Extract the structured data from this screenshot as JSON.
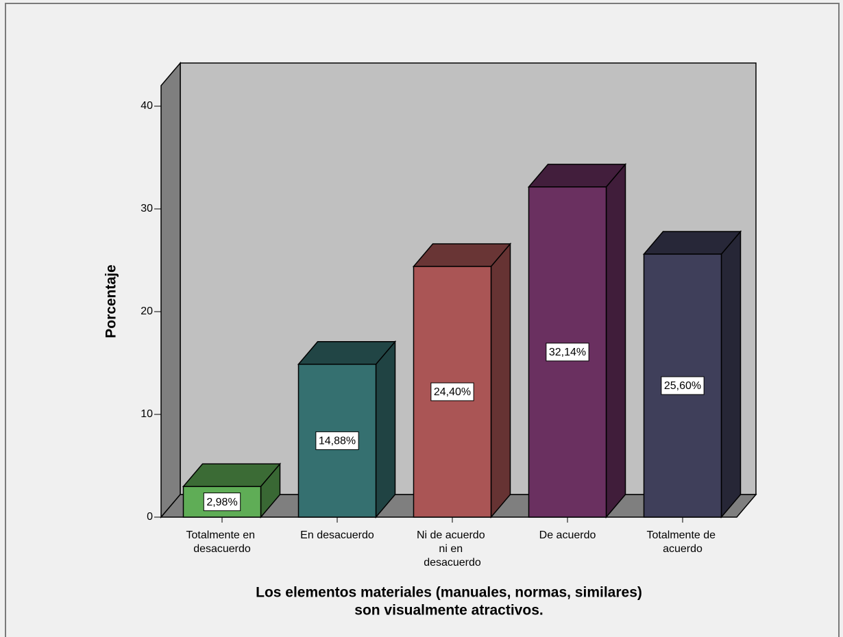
{
  "chart_data": {
    "type": "bar3d",
    "ylabel": "Porcentaje",
    "xlabel": [
      "Los elementos materiales (manuales, normas, similares)",
      "son visualmente atractivos."
    ],
    "categories": [
      "Totalmente en desacuerdo",
      "En desacuerdo",
      "Ni de acuerdo ni en desacuerdo",
      "De acuerdo",
      "Totalmente de acuerdo"
    ],
    "values": [
      2.98,
      14.88,
      24.4,
      32.14,
      25.6
    ],
    "value_labels": [
      "2,98%",
      "14,88%",
      "24,40%",
      "32,14%",
      "25,60%"
    ],
    "colors": [
      "#5fad56",
      "#357070",
      "#aa5555",
      "#6a3060",
      "#3f3f5a"
    ],
    "ylim": [
      0,
      42
    ],
    "yticks": [
      0,
      10,
      20,
      30,
      40
    ],
    "grid": false
  }
}
